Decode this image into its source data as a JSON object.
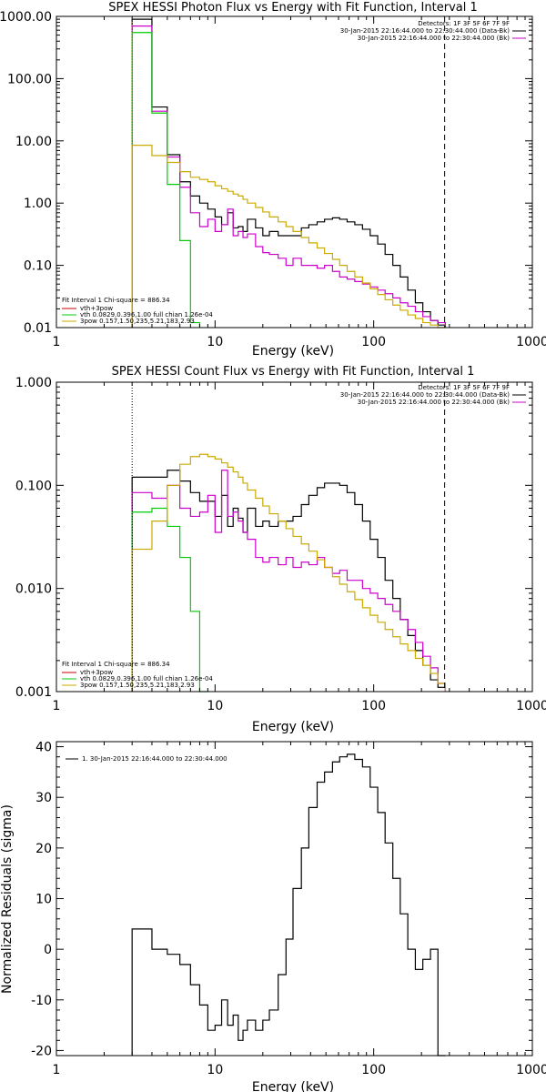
{
  "chart_data": [
    {
      "type": "line",
      "title": "SPEX HESSI Photon Flux vs Energy with Fit Function, Interval 1",
      "xlabel": "Energy (keV)",
      "ylabel": "",
      "xscale": "log",
      "yscale": "log",
      "xlim": [
        1,
        1000
      ],
      "ylim": [
        0.01,
        1000
      ],
      "xticklabels": [
        {
          "v": 1,
          "t": "1"
        },
        {
          "v": 10,
          "t": "10"
        },
        {
          "v": 100,
          "t": "100"
        },
        {
          "v": 1000,
          "t": "1000"
        }
      ],
      "yticklabels": [
        {
          "v": 0.01,
          "t": "0.01"
        },
        {
          "v": 0.1,
          "t": "0.10"
        },
        {
          "v": 1,
          "t": "1.00"
        },
        {
          "v": 10,
          "t": "10.00"
        },
        {
          "v": 100,
          "t": "100.00"
        },
        {
          "v": 1000,
          "t": "1000.00"
        }
      ],
      "legend_topright": [
        "Detectors: 1F 3F 5F 6F 7F 9F",
        "30-Jan-2015 22:16:44.000 to 22:30:44.000 (Data-Bk)",
        "30-Jan-2015 22:16:44.000 to 22:30:44.000 (Bk)"
      ],
      "legend_topright_colors": [
        "#000000",
        "#000000",
        "#cc00cc"
      ],
      "legend_bottomleft_header": "Fit Interval 1   Chi-square = 886.34",
      "legend_bottomleft": [
        "vth+3pow",
        "vth 0.0829,0.396,1.00  full chian 1.26e-04",
        "3pow 0.157,1.50,235,5.21,183,2.93"
      ],
      "legend_bottomleft_colors": [
        "#cc0000",
        "#00cc00",
        "#ccaa00"
      ],
      "vlines": [
        {
          "x": 3,
          "style": "dotted",
          "color": "#ff8800"
        },
        {
          "x": 280,
          "style": "dashed",
          "color": "#000000"
        }
      ],
      "x_edges": [
        3,
        4,
        5,
        6,
        7,
        8,
        9,
        10,
        11,
        12,
        13,
        14,
        15,
        16,
        18,
        20,
        22,
        25,
        28,
        31,
        35,
        39,
        44,
        49,
        55,
        61,
        68,
        76,
        85,
        95,
        106,
        118,
        132,
        147,
        164,
        183,
        204,
        228,
        254,
        283
      ],
      "series": [
        {
          "color": "#000000",
          "values": [
            900,
            35,
            6,
            2.2,
            1.3,
            1.0,
            0.8,
            0.6,
            0.45,
            0.7,
            0.4,
            0.42,
            0.35,
            0.55,
            0.4,
            0.3,
            0.35,
            0.3,
            0.3,
            0.3,
            0.4,
            0.45,
            0.5,
            0.55,
            0.58,
            0.55,
            0.5,
            0.45,
            0.38,
            0.3,
            0.22,
            0.15,
            0.1,
            0.065,
            0.04,
            0.025,
            0.018,
            0.013,
            0.011
          ]
        },
        {
          "color": "#cc00cc",
          "values": [
            700,
            30,
            5.5,
            1.8,
            0.7,
            0.42,
            0.55,
            0.35,
            0.45,
            0.8,
            0.3,
            0.35,
            0.28,
            0.32,
            0.2,
            0.16,
            0.15,
            0.13,
            0.1,
            0.13,
            0.1,
            0.1,
            0.09,
            0.1,
            0.08,
            0.065,
            0.06,
            0.055,
            0.05,
            0.045,
            0.04,
            0.035,
            0.03,
            0.025,
            0.022,
            0.018,
            0.015,
            0.013,
            0.012
          ]
        },
        {
          "color": "#00cc00",
          "values": [
            550,
            28,
            2.0,
            0.25,
            0.012
          ]
        },
        {
          "color": "#ccaa00",
          "values": [
            8.5,
            5.8,
            4.5,
            3.2,
            2.6,
            2.4,
            2.2,
            1.9,
            1.7,
            1.55,
            1.4,
            1.3,
            1.15,
            1.0,
            0.85,
            0.72,
            0.6,
            0.5,
            0.42,
            0.35,
            0.28,
            0.23,
            0.19,
            0.155,
            0.125,
            0.1,
            0.08,
            0.065,
            0.052,
            0.042,
            0.034,
            0.028,
            0.023,
            0.019,
            0.016,
            0.014,
            0.012,
            0.011,
            0.01
          ]
        }
      ]
    },
    {
      "type": "line",
      "title": "SPEX HESSI Count Flux vs Energy with Fit Function, Interval 1",
      "xlabel": "Energy (keV)",
      "ylabel": "",
      "xscale": "log",
      "yscale": "log",
      "xlim": [
        1,
        1000
      ],
      "ylim": [
        0.001,
        1
      ],
      "xticklabels": [
        {
          "v": 1,
          "t": "1"
        },
        {
          "v": 10,
          "t": "10"
        },
        {
          "v": 100,
          "t": "100"
        },
        {
          "v": 1000,
          "t": "1000"
        }
      ],
      "yticklabels": [
        {
          "v": 0.001,
          "t": "0.001"
        },
        {
          "v": 0.01,
          "t": "0.010"
        },
        {
          "v": 0.1,
          "t": "0.100"
        },
        {
          "v": 1,
          "t": "1.000"
        }
      ],
      "legend_topright": [
        "Detectors: 1F 3F 5F 6F 7F 9F",
        "30-Jan-2015 22:16:44.000 to 22:30:44.000 (Data-Bk)",
        "30-Jan-2015 22:16:44.000 to 22:30:44.000 (Bk)"
      ],
      "legend_topright_colors": [
        "#000000",
        "#000000",
        "#cc00cc"
      ],
      "legend_bottomleft_header": "Fit Interval 1   Chi-square = 886.34",
      "legend_bottomleft": [
        "vth+3pow",
        "vth 0.0829,0.396,1.00  full chian 1.26e-04",
        "3pow 0.157,1.50,235,5.21,183,2.93"
      ],
      "legend_bottomleft_colors": [
        "#cc0000",
        "#00cc00",
        "#ccaa00"
      ],
      "vlines": [
        {
          "x": 3,
          "style": "dotted",
          "color": "#000000"
        },
        {
          "x": 280,
          "style": "dashed",
          "color": "#000000"
        }
      ],
      "x_edges": [
        3,
        4,
        5,
        6,
        7,
        8,
        9,
        10,
        11,
        12,
        13,
        14,
        15,
        16,
        18,
        20,
        22,
        25,
        28,
        31,
        35,
        39,
        44,
        49,
        55,
        61,
        68,
        76,
        85,
        95,
        106,
        118,
        132,
        147,
        164,
        183,
        204,
        228,
        254,
        283
      ],
      "series": [
        {
          "color": "#000000",
          "values": [
            0.12,
            0.12,
            0.14,
            0.11,
            0.085,
            0.07,
            0.07,
            0.05,
            0.08,
            0.04,
            0.06,
            0.048,
            0.035,
            0.06,
            0.04,
            0.045,
            0.04,
            0.045,
            0.045,
            0.05,
            0.065,
            0.08,
            0.095,
            0.105,
            0.105,
            0.1,
            0.085,
            0.065,
            0.045,
            0.03,
            0.02,
            0.012,
            0.008,
            0.005,
            0.0035,
            0.0025,
            0.0018,
            0.0013,
            0.0011
          ]
        },
        {
          "color": "#cc00cc",
          "values": [
            0.085,
            0.075,
            0.1,
            0.06,
            0.05,
            0.055,
            0.08,
            0.035,
            0.14,
            0.05,
            0.055,
            0.045,
            0.035,
            0.03,
            0.02,
            0.018,
            0.02,
            0.017,
            0.02,
            0.016,
            0.018,
            0.017,
            0.02,
            0.016,
            0.014,
            0.015,
            0.012,
            0.012,
            0.01,
            0.009,
            0.008,
            0.007,
            0.006,
            0.005,
            0.004,
            0.003,
            0.0022,
            0.0017,
            0.0012
          ]
        },
        {
          "color": "#00cc00",
          "values": [
            0.055,
            0.06,
            0.04,
            0.02,
            0.006,
            0.001
          ]
        },
        {
          "color": "#ccaa00",
          "values": [
            0.024,
            0.045,
            0.1,
            0.16,
            0.19,
            0.2,
            0.19,
            0.18,
            0.165,
            0.15,
            0.135,
            0.12,
            0.105,
            0.09,
            0.075,
            0.063,
            0.053,
            0.045,
            0.038,
            0.032,
            0.027,
            0.023,
            0.019,
            0.016,
            0.013,
            0.011,
            0.0093,
            0.0078,
            0.0065,
            0.0055,
            0.0047,
            0.004,
            0.0034,
            0.0029,
            0.0025,
            0.0021,
            0.0018,
            0.0015,
            0.0012
          ]
        }
      ]
    },
    {
      "type": "line",
      "title": "",
      "xlabel": "Energy (keV)",
      "ylabel": "Normalized Residuals (sigma)",
      "xscale": "log",
      "yscale": "linear",
      "xlim": [
        1,
        1000
      ],
      "ylim": [
        -21,
        41
      ],
      "xticklabels": [
        {
          "v": 1,
          "t": "1"
        },
        {
          "v": 10,
          "t": "10"
        },
        {
          "v": 100,
          "t": "100"
        },
        {
          "v": 1000,
          "t": "1000"
        }
      ],
      "yticklabels": [
        {
          "v": -20,
          "t": "-20"
        },
        {
          "v": -10,
          "t": "-10"
        },
        {
          "v": 0,
          "t": "0"
        },
        {
          "v": 10,
          "t": "10"
        },
        {
          "v": 20,
          "t": "20"
        },
        {
          "v": 30,
          "t": "30"
        },
        {
          "v": 40,
          "t": "40"
        }
      ],
      "legend_topleft": [
        "1. 30-Jan-2015 22:16:44.000 to 22:30:44.000"
      ],
      "x_edges": [
        3,
        4,
        5,
        6,
        7,
        8,
        9,
        10,
        11,
        12,
        13,
        14,
        15,
        16,
        18,
        20,
        22,
        25,
        28,
        31,
        35,
        39,
        44,
        49,
        55,
        61,
        68,
        76,
        85,
        95,
        106,
        118,
        132,
        147,
        164,
        183,
        204,
        228,
        254,
        283
      ],
      "series": [
        {
          "color": "#000000",
          "values": [
            4,
            0,
            -1,
            -3,
            -7,
            -11,
            -16,
            -15,
            -10,
            -15,
            -13,
            -18,
            -16,
            -14,
            -16,
            -14,
            -12,
            -5,
            2,
            12,
            20,
            28,
            33,
            35,
            37,
            38,
            38.5,
            37.5,
            36,
            32,
            27,
            21,
            14,
            7,
            0,
            -4,
            -2,
            0,
            -21
          ]
        }
      ]
    }
  ]
}
